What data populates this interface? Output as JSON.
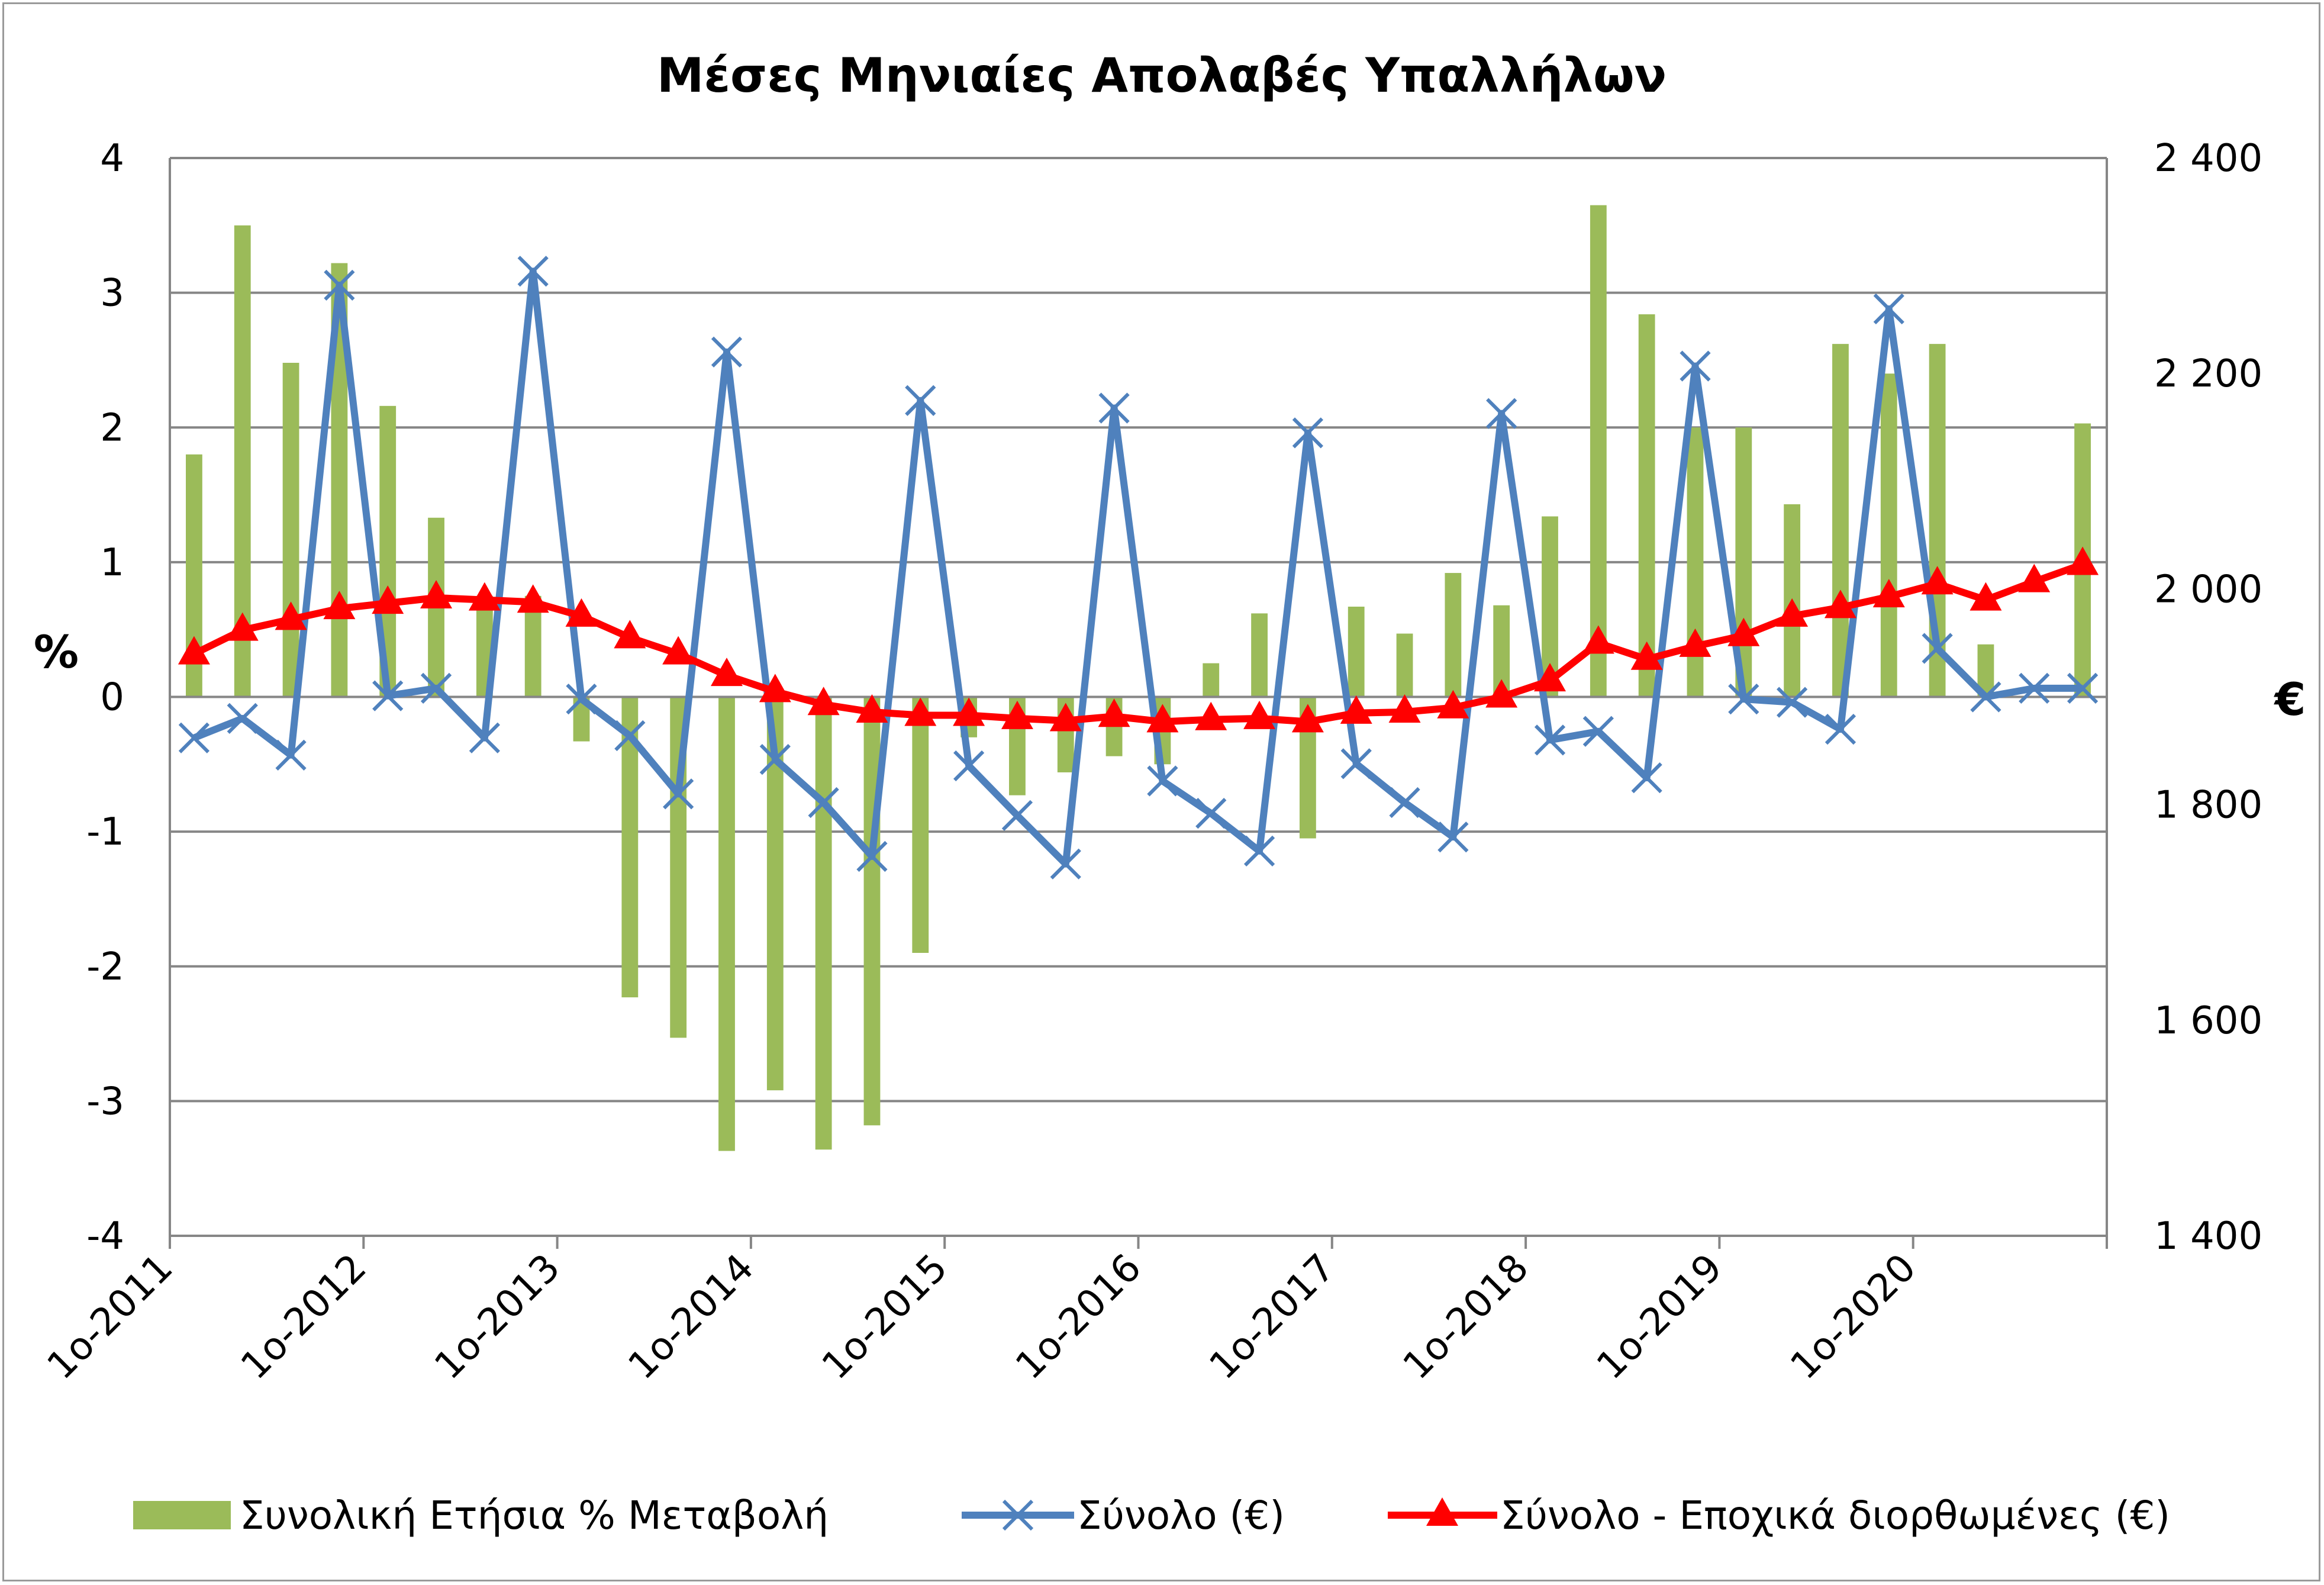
{
  "chart_data": {
    "type": "bar",
    "title": "Μέσες Μηνιαίες Απολαβές Υπαλλήλων",
    "ylabel_left": "%",
    "ylabel_right": "€",
    "ylim_left": [
      -4,
      4
    ],
    "ylim_right": [
      1400,
      2400
    ],
    "yticks_left": [
      "4",
      "3",
      "2",
      "1",
      "0",
      "-1",
      "-2",
      "-3",
      "-4"
    ],
    "yticks_right": [
      "2 400",
      "2 200",
      "2 000",
      "1 800",
      "1 600",
      "1 400"
    ],
    "grid": true,
    "legend_position": "bottom",
    "x_tick_labels": [
      "1ο-2011",
      "1ο-2012",
      "1ο-2013",
      "1ο-2014",
      "1ο-2015",
      "1ο-2016",
      "1ο-2017",
      "1ο-2018",
      "1ο-2019",
      "1ο-2020"
    ],
    "categories": [
      "1ο-2011",
      "2ο-2011",
      "3ο-2011",
      "4ο-2011",
      "1ο-2012",
      "2ο-2012",
      "3ο-2012",
      "4ο-2012",
      "1ο-2013",
      "2ο-2013",
      "3ο-2013",
      "4ο-2013",
      "1ο-2014",
      "2ο-2014",
      "3ο-2014",
      "4ο-2014",
      "1ο-2015",
      "2ο-2015",
      "3ο-2015",
      "4ο-2015",
      "1ο-2016",
      "2ο-2016",
      "3ο-2016",
      "4ο-2016",
      "1ο-2017",
      "2ο-2017",
      "3ο-2017",
      "4ο-2017",
      "1ο-2018",
      "2ο-2018",
      "3ο-2018",
      "4ο-2018",
      "1ο-2019",
      "2ο-2019",
      "3ο-2019",
      "4ο-2019",
      "1ο-2020",
      "2ο-2020",
      "3ο-2020",
      "4ο-2020"
    ],
    "series": [
      {
        "name": "Συνολική Ετήσια % Μεταβολή",
        "type": "bar",
        "axis": "left",
        "color": "#9bbb59",
        "values": [
          1.8,
          3.5,
          2.48,
          3.22,
          2.16,
          1.33,
          0.75,
          0.75,
          -0.33,
          -2.23,
          -2.53,
          -3.37,
          -2.92,
          -3.36,
          -3.18,
          -1.9,
          -0.3,
          -0.73,
          -0.56,
          -0.44,
          -0.5,
          0.25,
          0.62,
          -1.05,
          0.67,
          0.47,
          0.92,
          0.68,
          1.34,
          3.65,
          2.84,
          2.0,
          2.0,
          1.43,
          2.62,
          2.4,
          2.62,
          0.39,
          0.0,
          2.03
        ]
      },
      {
        "name": "Σύνολο (€)",
        "type": "line",
        "axis": "right",
        "color": "#4f81bd",
        "marker": "x",
        "values": [
          1862,
          1880,
          1846,
          2282,
          1901,
          1908,
          1862,
          2295,
          1898,
          1864,
          1810,
          2220,
          1842,
          1802,
          1752,
          2175,
          1836,
          1790,
          1745,
          2168,
          1822,
          1792,
          1757,
          2145,
          1838,
          1802,
          1770,
          2163,
          1860,
          1868,
          1825,
          2207,
          1898,
          1895,
          1870,
          2260,
          1945,
          1900,
          1908,
          1908
        ]
      },
      {
        "name": "Σύνολο - Εποχικά διορθωμένες (€)",
        "type": "line",
        "axis": "right",
        "color": "#ff0000",
        "marker": "triangle",
        "values": [
          1940,
          1962,
          1972,
          1982,
          1987,
          1992,
          1990,
          1988,
          1975,
          1955,
          1940,
          1920,
          1905,
          1893,
          1886,
          1883,
          1883,
          1880,
          1878,
          1882,
          1877,
          1879,
          1880,
          1877,
          1885,
          1886,
          1890,
          1900,
          1915,
          1950,
          1935,
          1947,
          1957,
          1975,
          1983,
          1993,
          2005,
          1990,
          2007,
          2023
        ]
      }
    ]
  }
}
